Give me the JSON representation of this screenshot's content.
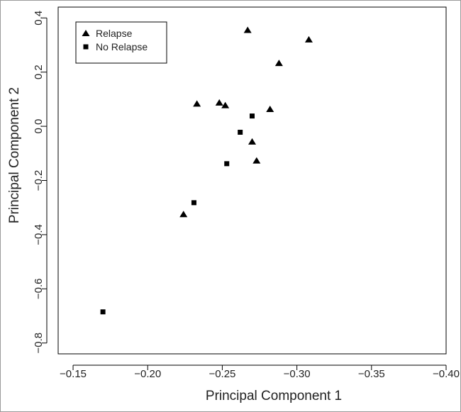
{
  "chart_data": {
    "type": "scatter",
    "xlabel": "Principal Component 1",
    "ylabel": "Principal Component 2",
    "xlim": [
      -0.14,
      -0.4
    ],
    "ylim": [
      -0.84,
      0.44
    ],
    "x_ticks": [
      -0.15,
      -0.2,
      -0.25,
      -0.3,
      -0.35,
      -0.4
    ],
    "x_tick_labels": [
      "−0.15",
      "−0.20",
      "−0.25",
      "−0.30",
      "−0.35",
      "−0.40"
    ],
    "y_ticks": [
      0.4,
      0.2,
      0.0,
      -0.2,
      -0.4,
      -0.6,
      -0.8
    ],
    "y_tick_labels": [
      "0.4",
      "0.2",
      "0.0",
      "−0.2",
      "−0.4",
      "−0.6",
      "−0.8"
    ],
    "grid": false,
    "legend": {
      "position": "top-left"
    },
    "series": [
      {
        "name": "Relapse",
        "marker": "triangle",
        "color": "#000000",
        "points": [
          {
            "x": -0.267,
            "y": 0.355
          },
          {
            "x": -0.308,
            "y": 0.32
          },
          {
            "x": -0.288,
            "y": 0.233
          },
          {
            "x": -0.233,
            "y": 0.083
          },
          {
            "x": -0.248,
            "y": 0.087
          },
          {
            "x": -0.252,
            "y": 0.077
          },
          {
            "x": -0.282,
            "y": 0.063
          },
          {
            "x": -0.27,
            "y": -0.057
          },
          {
            "x": -0.273,
            "y": -0.127
          },
          {
            "x": -0.224,
            "y": -0.325
          }
        ]
      },
      {
        "name": "No Relapse",
        "marker": "square",
        "color": "#000000",
        "points": [
          {
            "x": -0.27,
            "y": 0.038
          },
          {
            "x": -0.262,
            "y": -0.022
          },
          {
            "x": -0.253,
            "y": -0.138
          },
          {
            "x": -0.231,
            "y": -0.282
          },
          {
            "x": -0.17,
            "y": -0.685
          }
        ]
      }
    ]
  }
}
